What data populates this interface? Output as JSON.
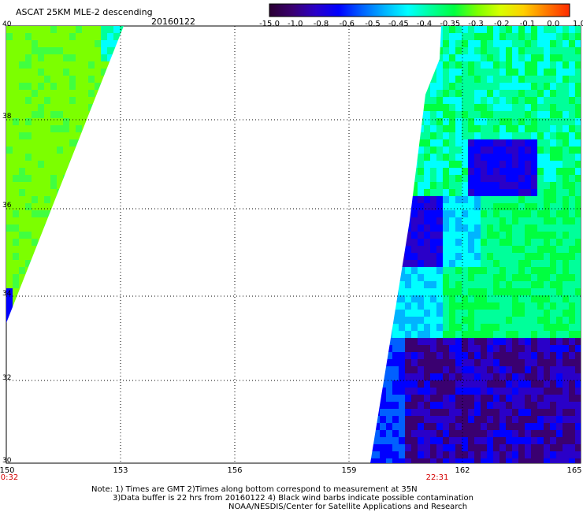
{
  "header": {
    "title": "ASCAT 25KM MLE-2 descending",
    "date": "20160122"
  },
  "colorbar": {
    "stops": [
      "#2b0033",
      "#3a0070",
      "#2a00c8",
      "#0000ff",
      "#0060ff",
      "#00b4ff",
      "#00ffff",
      "#00ff9a",
      "#00ff40",
      "#7cff00",
      "#d8ff00",
      "#ffd000",
      "#ff7a00",
      "#ff2a00"
    ],
    "ticks": [
      "-15.0",
      "-1.0",
      "-0.8",
      "-0.6",
      "-0.5",
      "-0.45",
      "-0.4",
      "-0.35",
      "-0.3",
      "-0.2",
      "-0.1",
      "0.0",
      "1.0"
    ]
  },
  "map": {
    "lon_range": [
      150,
      165
    ],
    "lat_range": [
      30,
      40
    ],
    "y_ticks": [
      "40",
      "38",
      "36",
      "34",
      "32",
      "30"
    ],
    "x_ticks": [
      "150",
      "153",
      "156",
      "159",
      "162",
      "165"
    ],
    "time_labels": [
      {
        "lon": 150,
        "text": "0:32"
      },
      {
        "lon": 161.8,
        "text": "22:31"
      }
    ],
    "left_swath_colors": [
      "#7cff00",
      "#40ff40",
      "#00ff9a",
      "#00ffff",
      "#0000ff"
    ],
    "right_swath_colors": [
      "#00ff9a",
      "#00ff40",
      "#00ffff",
      "#00b4ff",
      "#0060ff",
      "#0000ff",
      "#2a00c8",
      "#3a0070"
    ]
  },
  "notes": [
    "Note: 1) Times are GMT 2)Times along bottom correspond to measurement at 35N",
    "3)Data buffer is 22 hrs from 20160122 4) Black wind barbs indicate possible contamination",
    "NOAA/NESDIS/Center for Satellite Applications and Research"
  ]
}
